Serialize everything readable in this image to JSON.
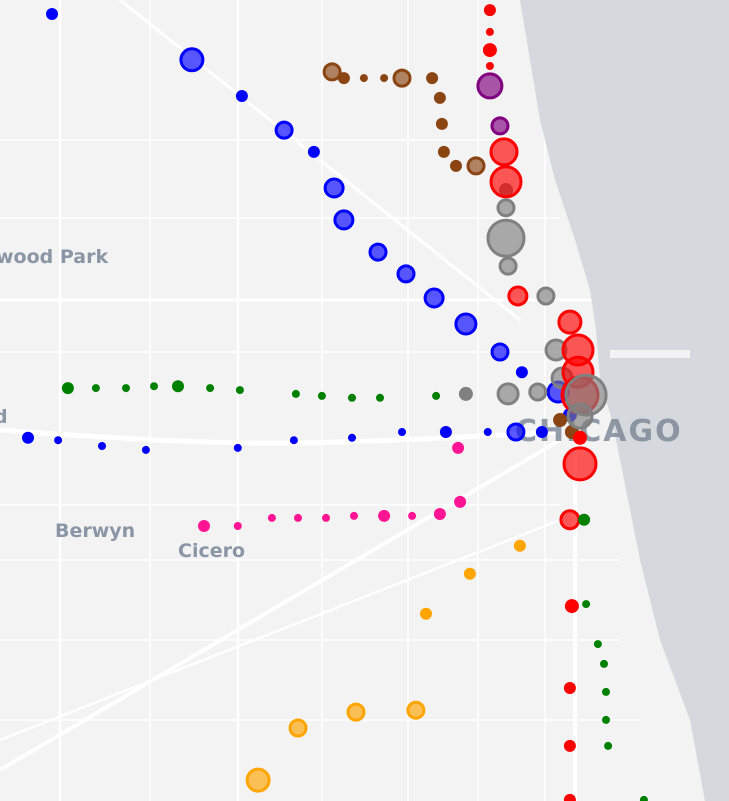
{
  "map": {
    "labels": {
      "elmwood_park": "wood Park",
      "left_edge": "d",
      "berwyn": "Berwyn",
      "cicero": "Cicero",
      "chicago": "CHICAGO"
    },
    "colors": {
      "land": "#f3f3f3",
      "water": "#d5d9dd",
      "roads": "#ffffff"
    }
  },
  "stations": [
    {
      "line": "blue",
      "color": "#0000ff",
      "points": [
        [
          41.9871,
          -87.807,
          6
        ],
        [
          41.9753,
          -87.7586,
          11
        ],
        [
          41.966,
          -87.7413,
          6
        ],
        [
          41.9572,
          -87.7267,
          8
        ],
        [
          41.9516,
          -87.7164,
          6
        ],
        [
          41.9423,
          -87.7094,
          9
        ],
        [
          41.9341,
          -87.706,
          9
        ],
        [
          41.9258,
          -87.6942,
          8
        ],
        [
          41.9202,
          -87.6845,
          8
        ],
        [
          41.914,
          -87.6748,
          9
        ],
        [
          41.9073,
          -87.6638,
          10
        ],
        [
          41.9001,
          -87.652,
          8
        ],
        [
          41.8949,
          -87.6444,
          6
        ],
        [
          41.8898,
          -87.6319,
          10
        ],
        [
          41.8839,
          -87.6278,
          7
        ],
        [
          41.878,
          -87.8153,
          6
        ],
        [
          41.8774,
          -87.8049,
          4
        ],
        [
          41.8759,
          -87.7897,
          4
        ],
        [
          41.8749,
          -87.7745,
          4
        ],
        [
          41.8754,
          -87.7427,
          4
        ],
        [
          41.8774,
          -87.7233,
          4
        ],
        [
          41.878,
          -87.7032,
          4
        ],
        [
          41.8795,
          -87.6859,
          4
        ],
        [
          41.8795,
          -87.6707,
          6
        ],
        [
          41.8795,
          -87.6562,
          4
        ],
        [
          41.8795,
          -87.6465,
          8
        ],
        [
          41.8795,
          -87.6375,
          6
        ]
      ]
    },
    {
      "line": "brown",
      "color": "#8b4513",
      "points": [
        [
          41.9722,
          -87.7101,
          8
        ],
        [
          41.9706,
          -87.706,
          6
        ],
        [
          41.9706,
          -87.6991,
          4
        ],
        [
          41.9706,
          -87.6921,
          4
        ],
        [
          41.9706,
          -87.6859,
          8
        ],
        [
          41.9706,
          -87.6755,
          6
        ],
        [
          41.9655,
          -87.6728,
          6
        ],
        [
          41.9588,
          -87.6721,
          6
        ],
        [
          41.9516,
          -87.6714,
          6
        ],
        [
          41.948,
          -87.6672,
          6
        ],
        [
          41.948,
          -87.6603,
          8
        ],
        [
          41.8826,
          -87.6312,
          7
        ],
        [
          41.8795,
          -87.6271,
          7
        ]
      ]
    },
    {
      "line": "purple",
      "color": "#800080",
      "points": [
        [
          41.9686,
          -87.6555,
          12
        ],
        [
          41.9583,
          -87.652,
          8
        ]
      ]
    },
    {
      "line": "gray",
      "color": "#808080",
      "points": [
        [
          41.9418,
          -87.6499,
          7
        ],
        [
          41.9372,
          -87.6499,
          8
        ],
        [
          41.9294,
          -87.6499,
          18
        ],
        [
          41.9222,
          -87.6492,
          8
        ],
        [
          41.9145,
          -87.6361,
          8
        ],
        [
          41.9006,
          -87.6326,
          10
        ],
        [
          41.8934,
          -87.6305,
          10
        ],
        [
          41.8893,
          -87.6638,
          7
        ],
        [
          41.8893,
          -87.6492,
          10
        ],
        [
          41.8898,
          -87.6389,
          8
        ]
      ]
    },
    {
      "line": "red",
      "color": "#ff0000",
      "points": [
        [
          41.9881,
          -87.6555,
          6
        ],
        [
          41.9825,
          -87.6555,
          4
        ],
        [
          41.9778,
          -87.6555,
          7
        ],
        [
          41.9737,
          -87.6555,
          4
        ],
        [
          41.9516,
          -87.6506,
          13
        ],
        [
          41.9439,
          -87.6499,
          15
        ],
        [
          41.9145,
          -87.6458,
          9
        ],
        [
          41.9078,
          -87.6278,
          11
        ],
        [
          41.9006,
          -87.625,
          15
        ],
        [
          41.8949,
          -87.625,
          15
        ],
        [
          41.889,
          -87.6243,
          18
        ],
        [
          41.878,
          -87.6243,
          7
        ],
        [
          41.8713,
          -87.6243,
          16
        ],
        [
          41.8569,
          -87.6278,
          9
        ],
        [
          41.8347,
          -87.6271,
          7
        ],
        [
          41.8136,
          -87.6278,
          6
        ],
        [
          41.7987,
          -87.6278,
          6
        ],
        [
          41.7848,
          -87.6278,
          6
        ]
      ]
    },
    {
      "line": "gray-loop",
      "color": "#808080",
      "points": [
        [
          41.889,
          -87.6222,
          20
        ],
        [
          41.8836,
          -87.6243,
          12
        ]
      ]
    },
    {
      "line": "green",
      "color": "#008000",
      "points": [
        [
          41.8908,
          -87.8015,
          6
        ],
        [
          41.8908,
          -87.7918,
          4
        ],
        [
          41.8908,
          -87.7814,
          4
        ],
        [
          41.8913,
          -87.7717,
          4
        ],
        [
          41.8913,
          -87.7634,
          6
        ],
        [
          41.8908,
          -87.7523,
          4
        ],
        [
          41.8903,
          -87.742,
          4
        ],
        [
          41.8893,
          -87.7226,
          4
        ],
        [
          41.8888,
          -87.7136,
          4
        ],
        [
          41.8883,
          -87.7032,
          4
        ],
        [
          41.8883,
          -87.6935,
          4
        ],
        [
          41.8888,
          -87.6741,
          4
        ],
        [
          41.8569,
          -87.6229,
          6
        ],
        [
          41.8352,
          -87.6222,
          4
        ],
        [
          41.8249,
          -87.6181,
          4
        ],
        [
          41.8198,
          -87.616,
          4
        ],
        [
          41.8126,
          -87.6153,
          4
        ],
        [
          41.8054,
          -87.6153,
          4
        ],
        [
          41.7987,
          -87.6146,
          4
        ],
        [
          41.7848,
          -87.6022,
          4
        ]
      ]
    },
    {
      "line": "pink",
      "color": "#ff1493",
      "points": [
        [
          41.8754,
          -87.6665,
          6
        ],
        [
          41.8553,
          -87.7544,
          6
        ],
        [
          41.8553,
          -87.7427,
          4
        ],
        [
          41.8574,
          -87.7309,
          4
        ],
        [
          41.8574,
          -87.7219,
          4
        ],
        [
          41.8574,
          -87.7122,
          4
        ],
        [
          41.8579,
          -87.7025,
          4
        ],
        [
          41.8579,
          -87.6921,
          6
        ],
        [
          41.8579,
          -87.6824,
          4
        ],
        [
          41.8584,
          -87.6728,
          6
        ],
        [
          41.8615,
          -87.6658,
          6
        ]
      ]
    },
    {
      "line": "orange",
      "color": "#ffa500",
      "points": [
        [
          41.8502,
          -87.6451,
          6
        ],
        [
          41.843,
          -87.6624,
          6
        ],
        [
          41.8327,
          -87.6776,
          6
        ],
        [
          41.8079,
          -87.6811,
          8
        ],
        [
          41.8074,
          -87.7018,
          8
        ],
        [
          41.8033,
          -87.7219,
          8
        ],
        [
          41.7899,
          -87.7357,
          11
        ]
      ]
    }
  ]
}
